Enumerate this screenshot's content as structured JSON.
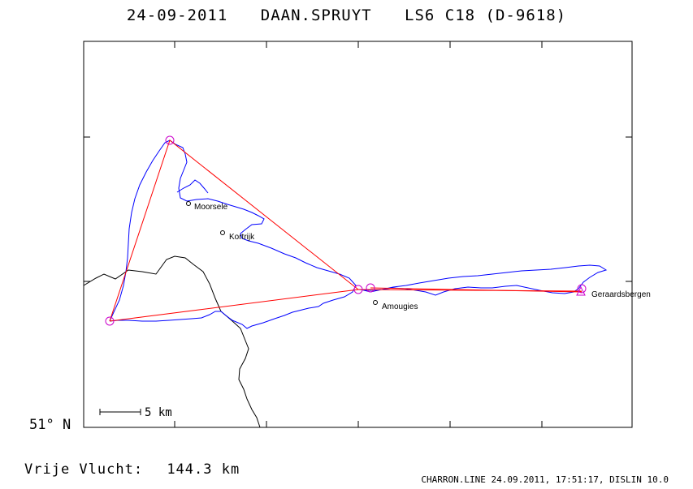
{
  "header": {
    "date": "24-09-2011",
    "pilot": "DAAN.SPRUYT",
    "glider": "LS6 C18 (D-9618)"
  },
  "axis": {
    "latitude_label": "51° N"
  },
  "scale": {
    "label": "5 km"
  },
  "towns": [
    {
      "name": "Moorsele"
    },
    {
      "name": "Kortrijk"
    },
    {
      "name": "Amougies"
    },
    {
      "name": "Geraardsbergen"
    }
  ],
  "colors": {
    "track": "#0000ff",
    "task": "#ff0000",
    "turnpoint": "#cc00cc",
    "border": "#000000"
  },
  "footer": {
    "distance_label": "Vrije Vlucht:",
    "distance_value": "144.3 km",
    "credit": "CHARRON.LINE 24.09.2011, 17:51:17, DISLIN 10.0"
  }
}
